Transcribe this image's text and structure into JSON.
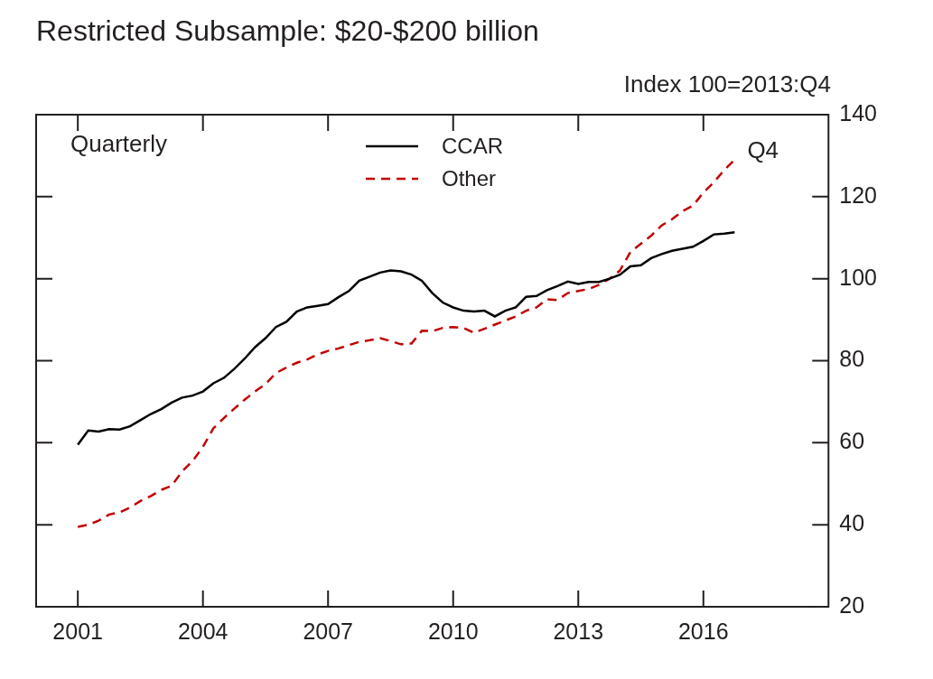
{
  "chart_data": {
    "type": "line",
    "title": "Restricted Subsample: $20-$200 billion",
    "subtitle": "Index 100=2013:Q4",
    "annotations": [
      {
        "text": "Quarterly"
      },
      {
        "text": "Q4"
      }
    ],
    "x": [
      2001,
      2001.25,
      2001.5,
      2001.75,
      2002,
      2002.25,
      2002.5,
      2002.75,
      2003,
      2003.25,
      2003.5,
      2003.75,
      2004,
      2004.25,
      2004.5,
      2004.75,
      2005,
      2005.25,
      2005.5,
      2005.75,
      2006,
      2006.25,
      2006.5,
      2006.75,
      2007,
      2007.25,
      2007.5,
      2007.75,
      2008,
      2008.25,
      2008.5,
      2008.75,
      2009,
      2009.25,
      2009.5,
      2009.75,
      2010,
      2010.25,
      2010.5,
      2010.75,
      2011,
      2011.25,
      2011.5,
      2011.75,
      2012,
      2012.25,
      2012.5,
      2012.75,
      2013,
      2013.25,
      2013.5,
      2013.75,
      2014,
      2014.25,
      2014.5,
      2014.75,
      2015,
      2015.25,
      2015.5,
      2015.75,
      2016,
      2016.25,
      2016.5,
      2016.75
    ],
    "series": [
      {
        "name": "CCAR",
        "color": "#000000",
        "line_style": "solid",
        "values": [
          59.5,
          63,
          62.7,
          63.3,
          63.2,
          64,
          65.5,
          67,
          68.2,
          69.8,
          71,
          71.5,
          72.5,
          74.5,
          75.8,
          78,
          80.5,
          83.3,
          85.5,
          88.2,
          89.5,
          92,
          93,
          93.4,
          93.8,
          95.5,
          97,
          99.5,
          100.5,
          101.5,
          102,
          101.8,
          101,
          99.5,
          96.5,
          94.2,
          93,
          92.2,
          92,
          92.2,
          90.8,
          92.2,
          93,
          95.6,
          95.8,
          97.2,
          98.2,
          99.3,
          98.7,
          99.2,
          99.2,
          100,
          101,
          103,
          103.3,
          105,
          106,
          106.8,
          107.3,
          107.8,
          109.2,
          110.8,
          111,
          111.3
        ]
      },
      {
        "name": "Other",
        "color": "#c00000",
        "line_style": "dashed",
        "values": [
          39.5,
          40,
          41,
          42.5,
          43,
          44.2,
          45.8,
          47,
          48.5,
          49.5,
          53,
          55.5,
          59,
          63.5,
          66,
          68.3,
          70.5,
          72.5,
          74.3,
          77,
          78.3,
          79.5,
          80.3,
          81.5,
          82.4,
          83,
          83.8,
          84.6,
          85,
          85.5,
          84.8,
          84,
          84.2,
          87.3,
          87.2,
          88,
          88.2,
          88,
          86.8,
          87.8,
          88.8,
          89.8,
          90.8,
          92.2,
          93,
          95,
          94.8,
          96.5,
          97,
          97.5,
          98.5,
          100,
          102,
          106.5,
          108.5,
          110.5,
          113,
          114.5,
          116.5,
          117.8,
          121,
          123.5,
          126.5,
          129
        ]
      }
    ],
    "xlim": [
      2000,
      2019
    ],
    "xticks": [
      2001,
      2004,
      2007,
      2010,
      2013,
      2016
    ],
    "ylim": [
      20,
      140
    ],
    "yticks": [
      20,
      40,
      60,
      80,
      100,
      120,
      140
    ],
    "grid": false,
    "legend": "top"
  }
}
